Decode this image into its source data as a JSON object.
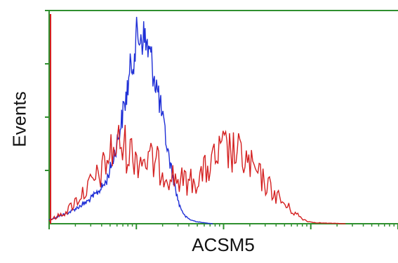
{
  "chart_data": {
    "type": "line",
    "title": "",
    "xlabel": "ACSM5",
    "ylabel": "Events",
    "x_scale": "log",
    "xlim": [
      1,
      10000
    ],
    "ylim": [
      0,
      100
    ],
    "grid": false,
    "legend": "none",
    "colors": {
      "axes": "#2f8f2f",
      "blue": "#1f2fd6",
      "red": "#d42020",
      "text": "#111111"
    },
    "series": [
      {
        "color": "#1f2fd6",
        "x": [
          1,
          1.3,
          1.7,
          2.2,
          2.8,
          3.5,
          4.5,
          5.5,
          6.5,
          7.5,
          8.5,
          10,
          11.5,
          13,
          15,
          17.5,
          20,
          23,
          27,
          31,
          36,
          42,
          50,
          60,
          75
        ],
        "y": [
          2,
          4,
          6,
          9,
          12,
          16,
          22,
          35,
          50,
          65,
          80,
          97,
          100,
          95,
          85,
          70,
          55,
          38,
          22,
          10,
          4,
          2,
          1,
          0.5,
          0
        ]
      },
      {
        "color": "#d42020",
        "x": [
          1,
          1.3,
          1.6,
          2,
          2.5,
          3.2,
          4,
          5,
          6.5,
          8,
          10,
          13,
          16,
          20,
          25,
          32,
          40,
          50,
          65,
          80,
          100,
          130,
          160,
          200,
          250,
          320,
          400,
          500,
          650,
          800,
          1000,
          1300,
          1600,
          2000,
          2500
        ],
        "y": [
          2,
          5,
          8,
          14,
          20,
          26,
          32,
          44,
          50,
          46,
          42,
          40,
          38,
          34,
          30,
          27,
          26,
          28,
          34,
          40,
          46,
          44,
          42,
          36,
          30,
          24,
          18,
          12,
          7,
          3,
          1,
          0.5,
          0.3,
          0.2,
          0
        ]
      }
    ]
  }
}
